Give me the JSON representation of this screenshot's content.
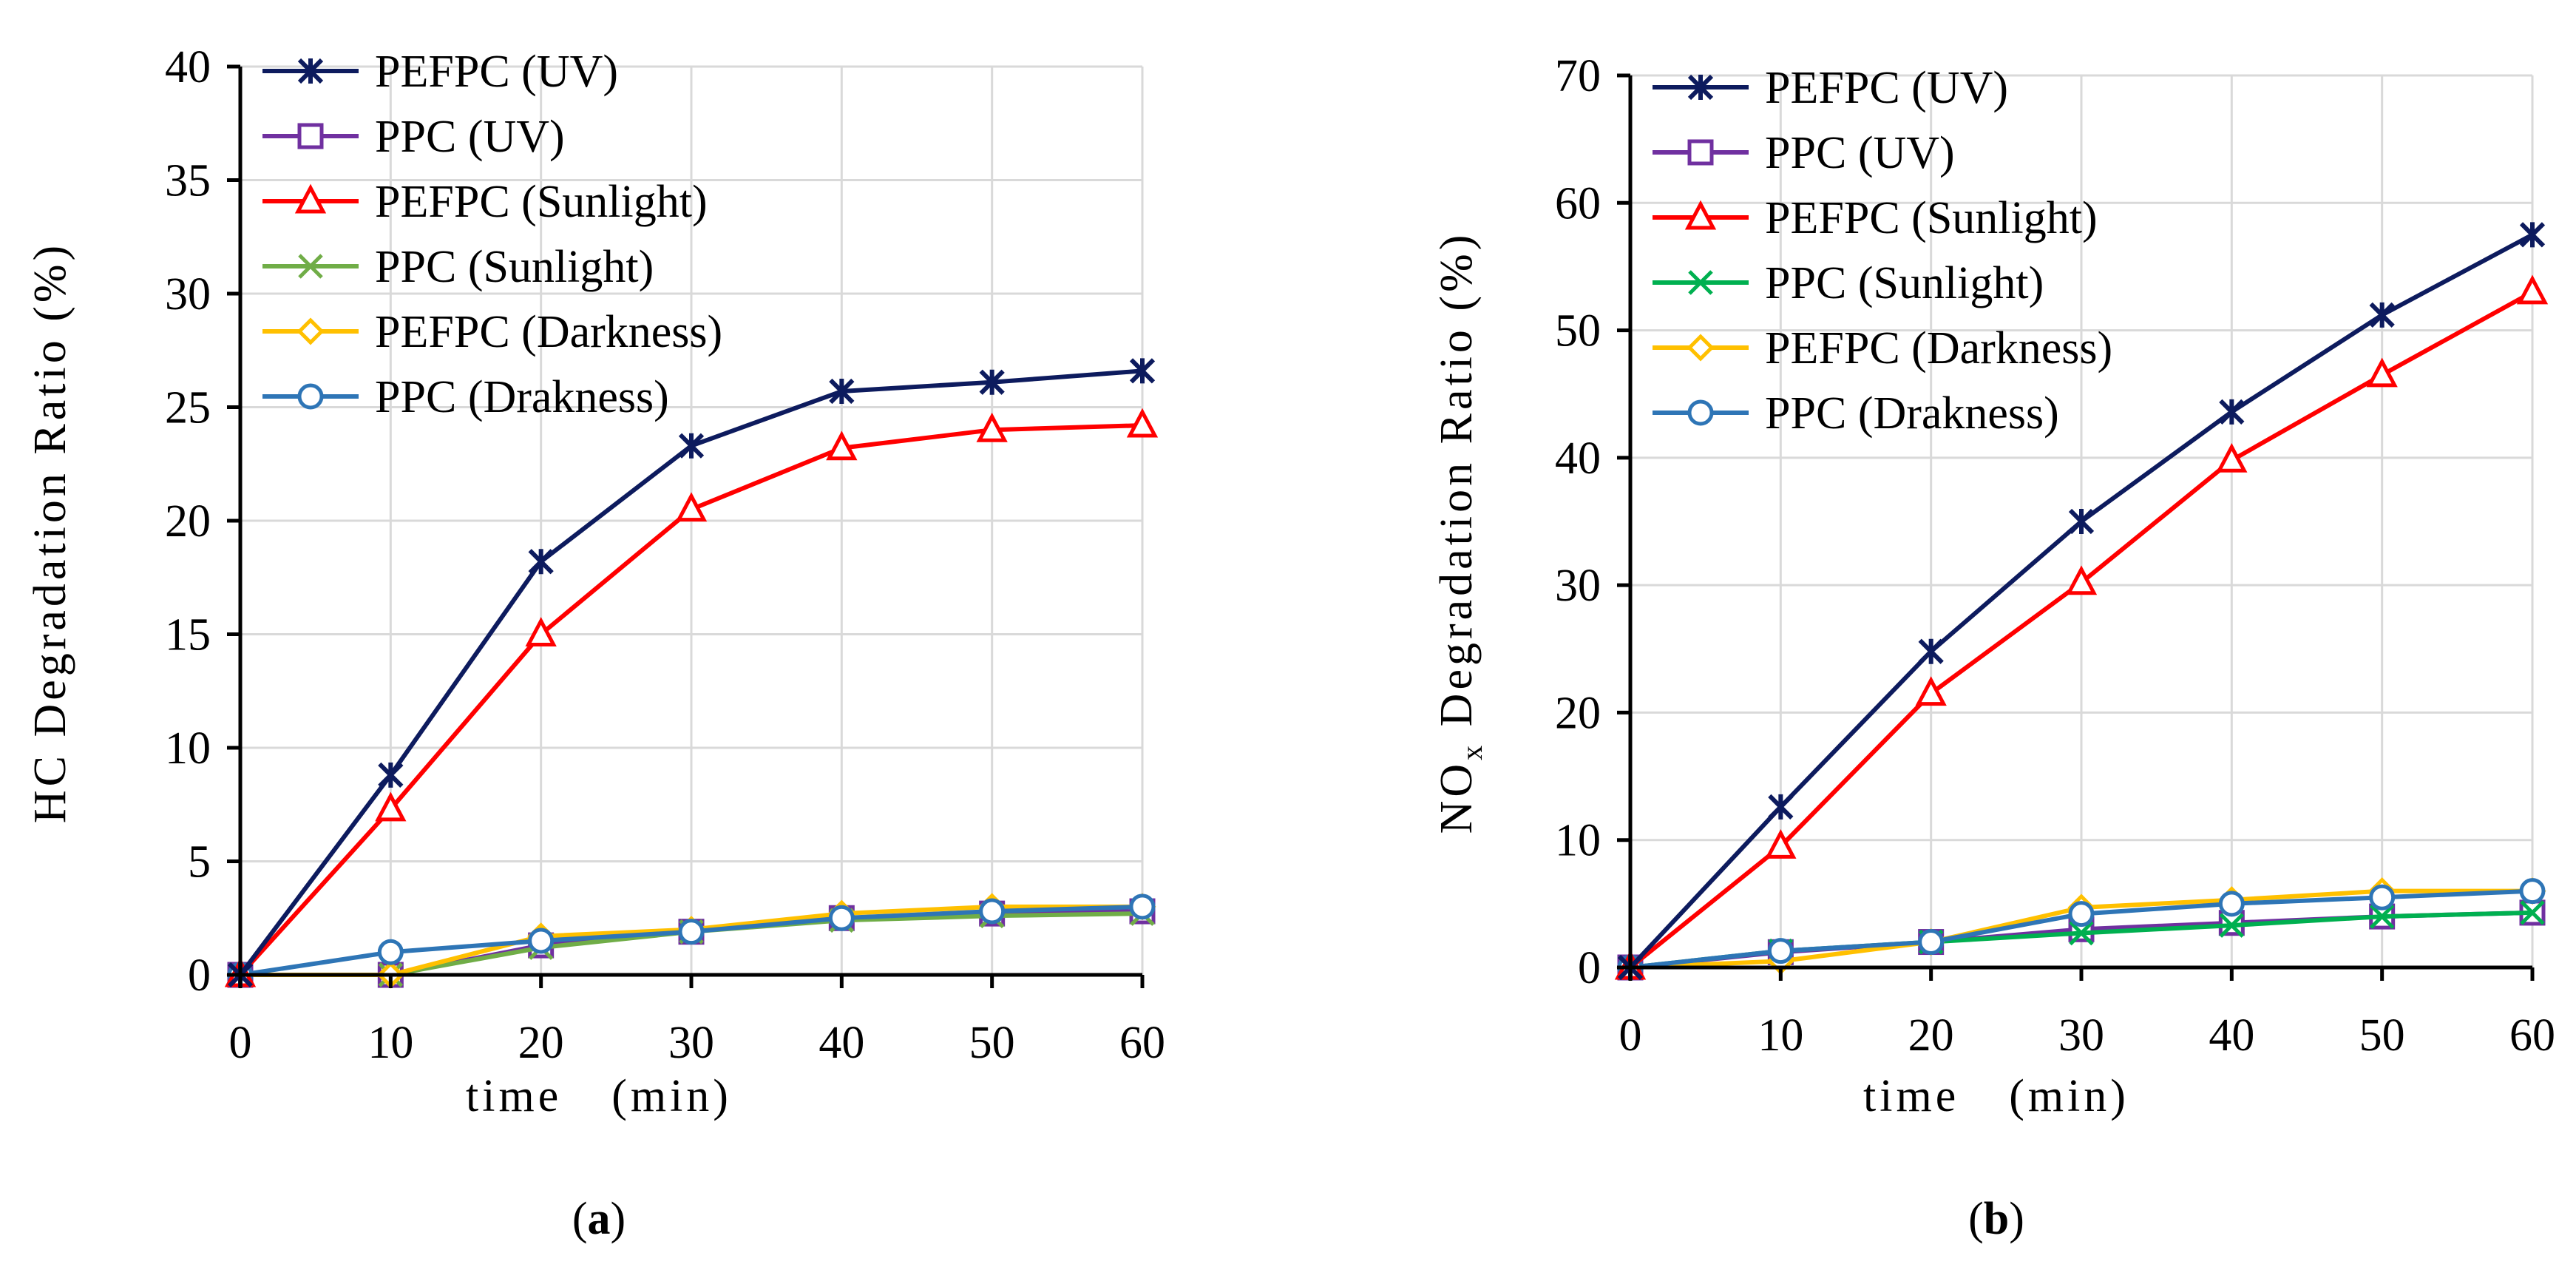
{
  "chart_data": [
    {
      "type": "line",
      "panel_label": "a",
      "title": "",
      "xlabel": "time (min)",
      "ylabel": "HC Degradation Ratio (%)",
      "xlim": [
        0,
        60
      ],
      "ylim": [
        0,
        40
      ],
      "x_ticks": [
        "0",
        "10",
        "20",
        "30",
        "40",
        "50",
        "60"
      ],
      "y_ticks": [
        "0",
        "5",
        "10",
        "15",
        "20",
        "25",
        "30",
        "35",
        "40"
      ],
      "grid": true,
      "legend_position": "top-left",
      "x": [
        0,
        10,
        20,
        30,
        40,
        50,
        60
      ],
      "series": [
        {
          "name": "PEFPC (UV)",
          "color": "#0D1B5E",
          "marker": "star",
          "values": [
            0,
            8.8,
            18.2,
            23.3,
            25.7,
            26.1,
            26.6
          ]
        },
        {
          "name": "PPC (UV)",
          "color": "#7030A0",
          "marker": "square",
          "values": [
            0,
            0,
            1.3,
            1.9,
            2.5,
            2.7,
            2.8
          ]
        },
        {
          "name": "PEFPC (Sunlight)",
          "color": "#FF0000",
          "marker": "triangle",
          "values": [
            0,
            7.3,
            15.0,
            20.5,
            23.2,
            24.0,
            24.2
          ]
        },
        {
          "name": "PPC (Sunlight)",
          "color": "#70AD47",
          "marker": "x",
          "values": [
            0,
            0,
            1.2,
            1.9,
            2.4,
            2.6,
            2.7
          ]
        },
        {
          "name": "PEFPC (Darkness)",
          "color": "#FFC000",
          "marker": "diamond",
          "values": [
            0,
            0,
            1.7,
            2.0,
            2.7,
            3.0,
            3.0
          ]
        },
        {
          "name": "PPC (Drakness)",
          "color": "#2E75B6",
          "marker": "circle",
          "values": [
            0,
            1.0,
            1.5,
            1.9,
            2.5,
            2.8,
            3.0
          ]
        }
      ]
    },
    {
      "type": "line",
      "panel_label": "b",
      "title": "",
      "xlabel": "time (min)",
      "ylabel": "NO",
      "ylabel_subscript": "x",
      "ylabel_suffix": " Degradation Ratio (%)",
      "xlim": [
        0,
        60
      ],
      "ylim": [
        0,
        70
      ],
      "x_ticks": [
        "0",
        "10",
        "20",
        "30",
        "40",
        "50",
        "60"
      ],
      "y_ticks": [
        "0",
        "10",
        "20",
        "30",
        "40",
        "50",
        "60",
        "70"
      ],
      "grid": true,
      "legend_position": "top-left",
      "x": [
        0,
        10,
        20,
        30,
        40,
        50,
        60
      ],
      "series": [
        {
          "name": "PEFPC (UV)",
          "color": "#0D1B5E",
          "marker": "star",
          "values": [
            0,
            12.6,
            24.8,
            35.0,
            43.6,
            51.2,
            57.5
          ]
        },
        {
          "name": "PPC (UV)",
          "color": "#7030A0",
          "marker": "square",
          "values": [
            0,
            1.2,
            2.0,
            3.0,
            3.5,
            4.0,
            4.3
          ]
        },
        {
          "name": "PEFPC (Sunlight)",
          "color": "#FF0000",
          "marker": "triangle",
          "values": [
            0,
            9.5,
            21.5,
            30.2,
            39.8,
            46.5,
            53.0
          ]
        },
        {
          "name": "PPC (Sunlight)",
          "color": "#00B050",
          "marker": "x",
          "values": [
            0,
            1.3,
            2.0,
            2.7,
            3.3,
            4.0,
            4.3
          ]
        },
        {
          "name": "PEFPC (Darkness)",
          "color": "#FFC000",
          "marker": "diamond",
          "values": [
            0,
            0.5,
            2.0,
            4.7,
            5.3,
            6.0,
            6.0
          ]
        },
        {
          "name": "PPC (Drakness)",
          "color": "#2E75B6",
          "marker": "circle",
          "values": [
            0,
            1.3,
            2.0,
            4.2,
            5.0,
            5.5,
            6.0
          ]
        }
      ]
    }
  ]
}
